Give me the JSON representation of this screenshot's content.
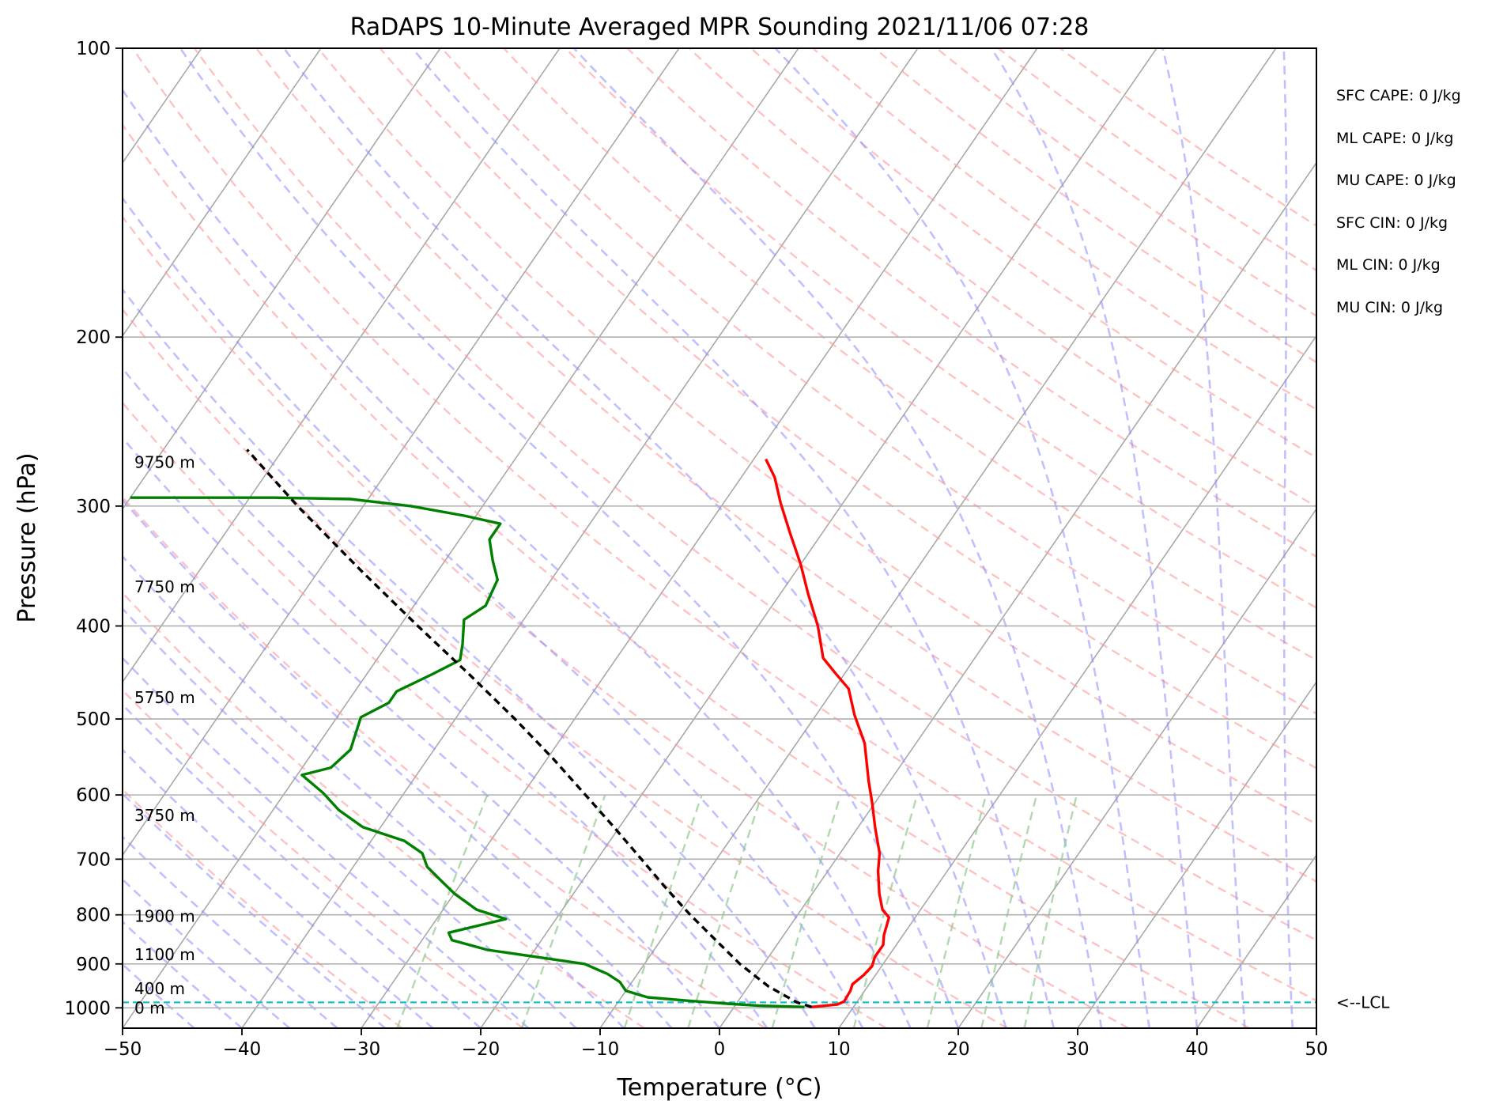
{
  "chart_data": {
    "type": "skew-t",
    "title": "RaDAPS 10-Minute Averaged MPR Sounding 2021/11/06 07:28",
    "xlabel": "Temperature (°C)",
    "ylabel": "Pressure (hPa)",
    "xlim": [
      -50,
      50
    ],
    "ylim": [
      1050,
      100
    ],
    "y_scale": "log",
    "x_ticks": [
      -50,
      -40,
      -30,
      -20,
      -10,
      0,
      10,
      20,
      30,
      40,
      50
    ],
    "y_ticks": [
      100,
      200,
      300,
      400,
      500,
      600,
      700,
      800,
      900,
      1000
    ],
    "grid": "horizontal pressure lines",
    "temperature_profile": {
      "color": "#ff0000",
      "points": [
        {
          "p": 998,
          "t": 6.5
        },
        {
          "p": 992,
          "t": 8.5
        },
        {
          "p": 985,
          "t": 8.9
        },
        {
          "p": 960,
          "t": 8.8
        },
        {
          "p": 945,
          "t": 8.6
        },
        {
          "p": 925,
          "t": 9.0
        },
        {
          "p": 905,
          "t": 9.2
        },
        {
          "p": 885,
          "t": 8.9
        },
        {
          "p": 860,
          "t": 8.9
        },
        {
          "p": 840,
          "t": 8.4
        },
        {
          "p": 805,
          "t": 7.8
        },
        {
          "p": 790,
          "t": 6.8
        },
        {
          "p": 760,
          "t": 5.6
        },
        {
          "p": 720,
          "t": 4.2
        },
        {
          "p": 690,
          "t": 3.3
        },
        {
          "p": 650,
          "t": 1.5
        },
        {
          "p": 610,
          "t": -0.3
        },
        {
          "p": 580,
          "t": -1.8
        },
        {
          "p": 530,
          "t": -4.3
        },
        {
          "p": 495,
          "t": -6.8
        },
        {
          "p": 465,
          "t": -8.8
        },
        {
          "p": 448,
          "t": -10.8
        },
        {
          "p": 432,
          "t": -12.7
        },
        {
          "p": 400,
          "t": -15.0
        },
        {
          "p": 370,
          "t": -17.7
        },
        {
          "p": 345,
          "t": -20.0
        },
        {
          "p": 320,
          "t": -22.7
        },
        {
          "p": 298,
          "t": -25.2
        },
        {
          "p": 280,
          "t": -27.2
        },
        {
          "p": 268,
          "t": -29.0
        }
      ]
    },
    "dewpoint_profile": {
      "color": "#008000",
      "points": [
        {
          "p": 998,
          "t": 5.9
        },
        {
          "p": 995,
          "t": 2.0
        },
        {
          "p": 990,
          "t": -0.8
        },
        {
          "p": 983,
          "t": -4.2
        },
        {
          "p": 975,
          "t": -7.8
        },
        {
          "p": 960,
          "t": -10.0
        },
        {
          "p": 940,
          "t": -11.0
        },
        {
          "p": 922,
          "t": -12.5
        },
        {
          "p": 900,
          "t": -15.0
        },
        {
          "p": 870,
          "t": -24.0
        },
        {
          "p": 850,
          "t": -27.5
        },
        {
          "p": 835,
          "t": -28.2
        },
        {
          "p": 808,
          "t": -24.2
        },
        {
          "p": 790,
          "t": -27.2
        },
        {
          "p": 760,
          "t": -30.0
        },
        {
          "p": 735,
          "t": -32.0
        },
        {
          "p": 713,
          "t": -33.8
        },
        {
          "p": 690,
          "t": -35.0
        },
        {
          "p": 670,
          "t": -37.2
        },
        {
          "p": 648,
          "t": -41.5
        },
        {
          "p": 622,
          "t": -44.5
        },
        {
          "p": 597,
          "t": -46.8
        },
        {
          "p": 572,
          "t": -49.6
        },
        {
          "p": 562,
          "t": -47.6
        },
        {
          "p": 538,
          "t": -47.0
        },
        {
          "p": 498,
          "t": -48.0
        },
        {
          "p": 481,
          "t": -46.5
        },
        {
          "p": 468,
          "t": -46.5
        },
        {
          "p": 449,
          "t": -44.5
        },
        {
          "p": 434,
          "t": -43.0
        },
        {
          "p": 418,
          "t": -43.7
        },
        {
          "p": 394,
          "t": -45.0
        },
        {
          "p": 381,
          "t": -44.0
        },
        {
          "p": 358,
          "t": -44.5
        },
        {
          "p": 342,
          "t": -46.0
        },
        {
          "p": 325,
          "t": -47.5
        },
        {
          "p": 313,
          "t": -47.5
        },
        {
          "p": 307,
          "t": -51.0
        },
        {
          "p": 300,
          "t": -56.0
        },
        {
          "p": 295,
          "t": -61.5
        },
        {
          "p": 294,
          "t": -68.0
        },
        {
          "p": 294,
          "t": -80.0
        }
      ]
    },
    "parcel_profile": {
      "color": "#000000",
      "style": "dashed",
      "points": [
        {
          "p": 998,
          "t": 6.5
        },
        {
          "p": 987,
          "t": 5.0
        },
        {
          "p": 950,
          "t": 1.7
        },
        {
          "p": 900,
          "t": -2.0
        },
        {
          "p": 850,
          "t": -5.4
        },
        {
          "p": 800,
          "t": -9.0
        },
        {
          "p": 750,
          "t": -12.6
        },
        {
          "p": 700,
          "t": -16.3
        },
        {
          "p": 650,
          "t": -20.3
        },
        {
          "p": 600,
          "t": -24.7
        },
        {
          "p": 550,
          "t": -29.5
        },
        {
          "p": 500,
          "t": -35.0
        },
        {
          "p": 450,
          "t": -41.3
        },
        {
          "p": 400,
          "t": -48.5
        },
        {
          "p": 350,
          "t": -56.5
        },
        {
          "p": 300,
          "t": -65.5
        },
        {
          "p": 262,
          "t": -73.0
        }
      ]
    },
    "height_labels": [
      {
        "text": "0 m",
        "p": 1000
      },
      {
        "text": "400 m",
        "p": 955
      },
      {
        "text": "1100 m",
        "p": 880
      },
      {
        "text": "1900 m",
        "p": 803
      },
      {
        "text": "3750 m",
        "p": 630
      },
      {
        "text": "5750 m",
        "p": 475
      },
      {
        "text": "7750 m",
        "p": 364
      },
      {
        "text": "9750 m",
        "p": 270
      }
    ],
    "lcl": {
      "p": 987,
      "label": "<--LCL",
      "color": "#17becf"
    },
    "background_lines": {
      "isotherms": {
        "color": "#a0a0a0",
        "spacing_c": 10
      },
      "dry_adiabats": {
        "color": "#ff8080",
        "style": "dashed"
      },
      "moist_adiabats": {
        "color": "#8080ff",
        "style": "dashed"
      },
      "mixing_ratio_lines": {
        "color": "#80c080",
        "style": "dashed"
      }
    }
  },
  "side_panel": [
    {
      "text": "SFC CAPE: 0 J/kg"
    },
    {
      "text": "ML CAPE: 0 J/kg"
    },
    {
      "text": "MU CAPE: 0 J/kg"
    },
    {
      "text": "SFC CIN: 0 J/kg"
    },
    {
      "text": "ML CIN: 0 J/kg"
    },
    {
      "text": "MU CIN: 0 J/kg"
    }
  ]
}
